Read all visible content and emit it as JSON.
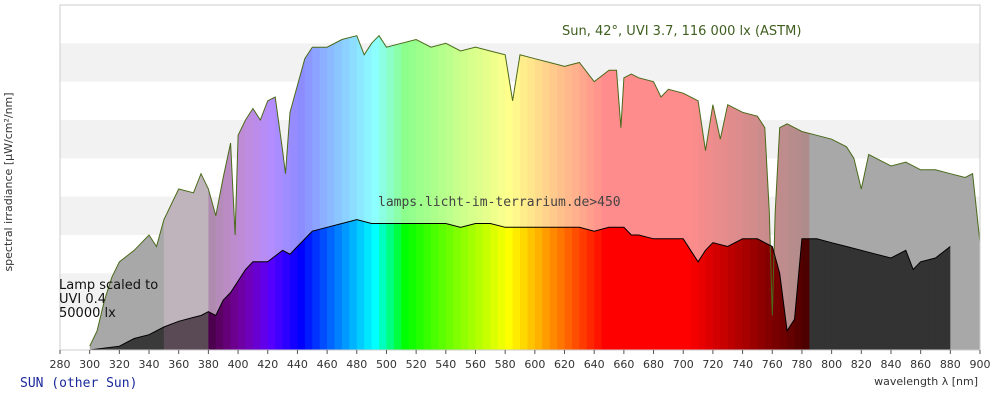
{
  "chart_data": {
    "type": "area",
    "xlabel": "wavelength λ [nm]",
    "ylabel": "spectral irradiance [µW/cm²/nm]",
    "xlim": [
      280,
      900
    ],
    "ylim": [
      0,
      9
    ],
    "x_ticks": [
      280,
      300,
      320,
      340,
      360,
      380,
      400,
      420,
      440,
      460,
      480,
      500,
      520,
      540,
      560,
      580,
      600,
      620,
      640,
      660,
      680,
      700,
      720,
      740,
      760,
      780,
      800,
      820,
      840,
      860,
      880,
      900
    ],
    "y_tick_labels_shown": false,
    "grid": "horizontal bands",
    "series": [
      {
        "name": "Sun, 42°, UVI 3.7, 116 000 lx (ASTM)",
        "color": "#4a6a1a",
        "x": [
          300,
          305,
          310,
          315,
          320,
          330,
          340,
          345,
          350,
          360,
          370,
          375,
          380,
          385,
          390,
          395,
          398,
          400,
          405,
          410,
          415,
          420,
          425,
          430,
          432,
          435,
          440,
          445,
          450,
          460,
          470,
          480,
          485,
          490,
          495,
          500,
          510,
          520,
          530,
          540,
          550,
          560,
          570,
          580,
          585,
          590,
          600,
          610,
          620,
          630,
          640,
          650,
          655,
          658,
          660,
          665,
          670,
          680,
          685,
          690,
          700,
          710,
          715,
          720,
          725,
          730,
          740,
          750,
          755,
          758,
          760,
          762,
          765,
          770,
          780,
          790,
          800,
          810,
          815,
          820,
          825,
          830,
          840,
          850,
          860,
          870,
          880,
          890,
          895,
          900
        ],
        "y": [
          0.1,
          0.5,
          1.3,
          1.9,
          2.3,
          2.6,
          3.0,
          2.7,
          3.4,
          4.2,
          4.1,
          4.6,
          4.2,
          3.5,
          4.5,
          5.4,
          3.0,
          5.6,
          6.0,
          6.3,
          6.0,
          6.5,
          6.6,
          5.2,
          4.6,
          6.2,
          6.9,
          7.6,
          7.9,
          7.9,
          8.1,
          8.2,
          7.7,
          8.0,
          8.2,
          7.9,
          8.0,
          8.1,
          7.9,
          8.0,
          7.8,
          7.9,
          7.8,
          7.7,
          6.5,
          7.7,
          7.6,
          7.5,
          7.4,
          7.5,
          7.0,
          7.3,
          7.3,
          5.8,
          7.1,
          7.2,
          7.1,
          7.0,
          6.6,
          6.8,
          6.7,
          6.5,
          5.2,
          6.4,
          5.5,
          6.4,
          6.2,
          6.1,
          5.8,
          3.6,
          0.9,
          3.6,
          5.8,
          5.9,
          5.7,
          5.6,
          5.5,
          5.3,
          5.0,
          4.2,
          5.1,
          5.0,
          4.8,
          4.9,
          4.7,
          4.7,
          4.6,
          4.5,
          4.6,
          2.8
        ]
      },
      {
        "name": "Lamp scaled to UVI 0.4 50000 lx",
        "color": "#000000",
        "x": [
          300,
          320,
          330,
          340,
          350,
          360,
          370,
          375,
          380,
          385,
          390,
          395,
          400,
          405,
          410,
          420,
          430,
          435,
          440,
          450,
          460,
          470,
          480,
          490,
          500,
          510,
          520,
          530,
          540,
          550,
          560,
          570,
          580,
          590,
          600,
          610,
          620,
          630,
          640,
          650,
          660,
          665,
          670,
          680,
          690,
          700,
          705,
          710,
          715,
          720,
          730,
          740,
          750,
          755,
          760,
          765,
          770,
          775,
          780,
          790,
          800,
          810,
          820,
          830,
          840,
          850,
          855,
          860,
          870,
          880
        ],
        "y": [
          0.0,
          0.1,
          0.3,
          0.4,
          0.6,
          0.75,
          0.85,
          0.9,
          1.0,
          0.9,
          1.3,
          1.5,
          1.8,
          2.1,
          2.3,
          2.3,
          2.6,
          2.5,
          2.7,
          3.1,
          3.2,
          3.3,
          3.4,
          3.3,
          3.3,
          3.3,
          3.3,
          3.3,
          3.3,
          3.2,
          3.3,
          3.3,
          3.2,
          3.2,
          3.2,
          3.2,
          3.2,
          3.2,
          3.1,
          3.2,
          3.2,
          3.0,
          3.0,
          2.9,
          2.9,
          2.9,
          2.6,
          2.3,
          2.6,
          2.8,
          2.7,
          2.9,
          2.9,
          2.8,
          2.7,
          2.0,
          0.5,
          0.8,
          2.9,
          2.9,
          2.8,
          2.7,
          2.6,
          2.5,
          2.4,
          2.6,
          2.1,
          2.3,
          2.4,
          2.7
        ]
      }
    ],
    "annotations": {
      "sun_label": "Sun, 42°, UVI 3.7, 116 000 lx (ASTM)",
      "watermark": "lamps.licht-im-terrarium.de>450",
      "lamp_label_lines": [
        "Lamp scaled to",
        "UVI 0.4",
        "50000 lx"
      ]
    }
  },
  "footer": {
    "link_text": "SUN (other Sun)"
  },
  "colors": {
    "band_light": "#f2f2f2",
    "band_white": "#ffffff",
    "sun_curve": "#4a6a1a",
    "lamp_curve": "#000000",
    "link": "#1a2a9a"
  }
}
